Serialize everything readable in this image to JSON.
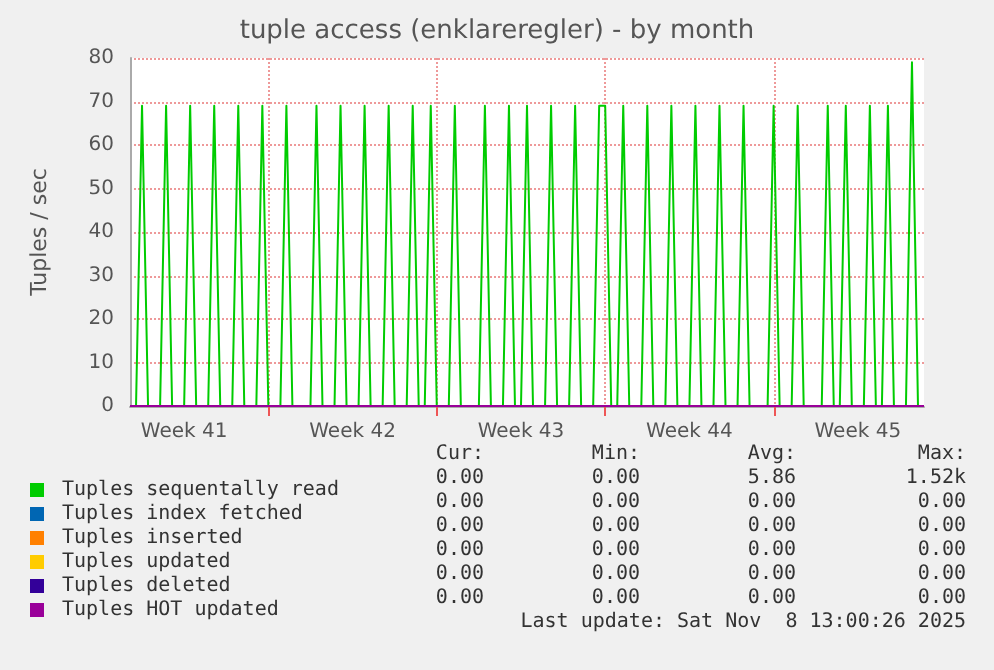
{
  "chart_data": {
    "type": "line",
    "title": "tuple access (enklareregler) - by month",
    "ylabel": "Tuples / sec",
    "categories": [
      null,
      null,
      null,
      null,
      null,
      null,
      null,
      null,
      null,
      "Week 41",
      null,
      null,
      null,
      null,
      null,
      null,
      null,
      null,
      null,
      null,
      null,
      null,
      null,
      null,
      null,
      null,
      null,
      null,
      null,
      null,
      null,
      null,
      null,
      null,
      null,
      null,
      null,
      "Week 42",
      null,
      null,
      null,
      null,
      null,
      null,
      null,
      null,
      null,
      null,
      null,
      null,
      null,
      null,
      null,
      null,
      null,
      null,
      null,
      null,
      null,
      null,
      null,
      null,
      null,
      null,
      null,
      "Week 43",
      null,
      null,
      null,
      null,
      null,
      null,
      null,
      null,
      null,
      null,
      null,
      null,
      null,
      null,
      null,
      null,
      null,
      null,
      null,
      null,
      null,
      null,
      null,
      null,
      null,
      null,
      null,
      "Week 44",
      null,
      null,
      null,
      null,
      null,
      null,
      null,
      null,
      null,
      null,
      null,
      null,
      null,
      null,
      null,
      null,
      null,
      null,
      null,
      null,
      null,
      null,
      null,
      null,
      null,
      null,
      null,
      "Week 45",
      null,
      null,
      null,
      null,
      null,
      null,
      null,
      null,
      null,
      null,
      null
    ],
    "ylim": [
      0,
      80
    ],
    "yticks": [
      0,
      10,
      20,
      30,
      40,
      50,
      60,
      70,
      80
    ],
    "grid": true,
    "legend": "bottom",
    "marker": "none",
    "line_style": "solid",
    "series": [
      {
        "name": "Tuples sequentally read",
        "color": "#00cc00",
        "values": [
          0,
          0,
          69,
          0,
          0,
          0,
          69,
          0,
          0,
          0,
          69,
          0,
          0,
          0,
          69,
          0,
          0,
          0,
          69,
          0,
          0,
          0,
          69,
          0,
          0,
          0,
          69,
          0,
          0,
          0,
          0,
          69,
          0,
          0,
          0,
          69,
          0,
          0,
          0,
          69,
          0,
          0,
          0,
          69,
          0,
          0,
          0,
          69,
          0,
          0,
          69,
          0,
          0,
          0,
          69,
          0,
          0,
          0,
          0,
          69,
          0,
          0,
          0,
          69,
          0,
          0,
          69,
          0,
          0,
          0,
          69,
          0,
          0,
          0,
          69,
          0,
          0,
          0,
          69,
          69,
          0,
          0,
          69,
          0,
          0,
          0,
          69,
          0,
          0,
          0,
          69,
          0,
          0,
          0,
          69,
          0,
          0,
          0,
          69,
          0,
          0,
          0,
          69,
          0,
          0,
          0,
          0,
          69,
          0,
          0,
          0,
          69,
          0,
          0,
          0,
          0,
          69,
          0,
          0,
          69,
          0,
          0,
          0,
          69,
          0,
          0,
          69,
          0,
          0,
          0,
          79,
          0,
          0
        ]
      },
      {
        "name": "Tuples index fetched",
        "color": "#0066b3",
        "values": [
          null,
          null,
          null,
          null,
          null,
          null,
          null,
          null,
          null,
          null,
          null,
          null,
          null,
          null,
          null,
          null,
          null,
          null,
          null,
          null,
          null,
          null,
          null,
          null,
          null,
          null,
          null,
          null,
          null,
          null,
          null,
          null,
          null,
          null,
          null,
          null,
          null,
          null,
          null,
          null,
          null,
          null,
          null,
          null,
          null,
          null,
          null,
          null,
          null,
          null,
          null,
          null,
          null,
          null,
          null,
          null,
          null,
          null,
          null,
          null,
          null,
          null,
          null,
          null,
          null,
          null,
          null,
          null,
          null,
          null,
          null,
          null,
          null,
          null,
          null,
          null,
          null,
          null,
          null,
          null,
          null,
          null,
          null,
          null,
          null,
          null,
          null,
          null,
          null,
          null,
          null,
          null,
          null,
          null,
          null,
          null,
          null,
          null,
          null,
          null,
          null,
          null,
          null,
          null,
          null,
          null,
          null,
          null,
          null,
          null,
          null,
          null,
          null,
          null,
          null,
          null,
          null,
          null,
          null,
          null,
          null,
          null,
          null,
          null,
          null,
          null,
          null,
          null,
          null,
          null,
          null,
          null,
          null
        ]
      },
      {
        "name": "Tuples inserted",
        "color": "#ff8000",
        "values": [
          null,
          null,
          null,
          null,
          null,
          null,
          null,
          null,
          null,
          null,
          null,
          null,
          null,
          null,
          null,
          null,
          null,
          null,
          null,
          null,
          null,
          null,
          null,
          null,
          null,
          null,
          null,
          null,
          null,
          null,
          null,
          null,
          null,
          null,
          null,
          null,
          null,
          null,
          null,
          null,
          null,
          null,
          null,
          null,
          null,
          null,
          null,
          null,
          null,
          null,
          null,
          null,
          null,
          null,
          null,
          null,
          null,
          null,
          null,
          null,
          null,
          null,
          null,
          null,
          null,
          null,
          null,
          null,
          null,
          null,
          null,
          null,
          null,
          null,
          null,
          null,
          null,
          null,
          null,
          null,
          null,
          null,
          null,
          null,
          null,
          null,
          null,
          null,
          null,
          null,
          null,
          null,
          null,
          null,
          null,
          null,
          null,
          null,
          null,
          null,
          null,
          null,
          null,
          null,
          null,
          null,
          null,
          null,
          null,
          null,
          null,
          null,
          null,
          null,
          null,
          null,
          null,
          null,
          null,
          null,
          null,
          null,
          null,
          null,
          null,
          null,
          null,
          null,
          null,
          null,
          null,
          null,
          null
        ]
      },
      {
        "name": "Tuples updated",
        "color": "#ffcc00",
        "values": [
          null,
          null,
          null,
          null,
          null,
          null,
          null,
          null,
          null,
          null,
          null,
          null,
          null,
          null,
          null,
          null,
          null,
          null,
          null,
          null,
          null,
          null,
          null,
          null,
          null,
          null,
          null,
          null,
          null,
          null,
          null,
          null,
          null,
          null,
          null,
          null,
          null,
          null,
          null,
          null,
          null,
          null,
          null,
          null,
          null,
          null,
          null,
          null,
          null,
          null,
          null,
          null,
          null,
          null,
          null,
          null,
          null,
          null,
          null,
          null,
          null,
          null,
          null,
          null,
          null,
          null,
          null,
          null,
          null,
          null,
          null,
          null,
          null,
          null,
          null,
          null,
          null,
          null,
          null,
          null,
          null,
          null,
          null,
          null,
          null,
          null,
          null,
          null,
          null,
          null,
          null,
          null,
          null,
          null,
          null,
          null,
          null,
          null,
          null,
          null,
          null,
          null,
          null,
          null,
          null,
          null,
          null,
          null,
          null,
          null,
          null,
          null,
          null,
          null,
          null,
          null,
          null,
          null,
          null,
          null,
          null,
          null,
          null,
          null,
          null,
          null,
          null,
          null,
          null,
          null,
          null,
          null,
          null
        ]
      },
      {
        "name": "Tuples deleted",
        "color": "#330099",
        "values": [
          null,
          null,
          null,
          null,
          null,
          null,
          null,
          null,
          null,
          null,
          null,
          null,
          null,
          null,
          null,
          null,
          null,
          null,
          null,
          null,
          null,
          null,
          null,
          null,
          null,
          null,
          null,
          null,
          null,
          null,
          null,
          null,
          null,
          null,
          null,
          null,
          null,
          null,
          null,
          null,
          null,
          null,
          null,
          null,
          null,
          null,
          null,
          null,
          null,
          null,
          null,
          null,
          null,
          null,
          null,
          null,
          null,
          null,
          null,
          null,
          null,
          null,
          null,
          null,
          null,
          null,
          null,
          null,
          null,
          null,
          null,
          null,
          null,
          null,
          null,
          null,
          null,
          null,
          null,
          null,
          null,
          null,
          null,
          null,
          null,
          null,
          null,
          null,
          null,
          null,
          null,
          null,
          null,
          null,
          null,
          null,
          null,
          null,
          null,
          null,
          null,
          null,
          null,
          null,
          null,
          null,
          null,
          null,
          null,
          null,
          null,
          null,
          null,
          null,
          null,
          null,
          null,
          null,
          null,
          null,
          null,
          null,
          null,
          null,
          null,
          null,
          null,
          null,
          null,
          null,
          null,
          null,
          null
        ]
      },
      {
        "name": "Tuples HOT updated",
        "color": "#990099",
        "values": [
          0,
          0,
          0,
          0,
          0,
          0,
          0,
          0,
          0,
          0,
          0,
          0,
          0,
          0,
          0,
          0,
          0,
          0,
          0,
          0,
          0,
          0,
          0,
          0,
          0,
          0,
          0,
          0,
          0,
          0,
          0,
          0,
          0,
          0,
          0,
          0,
          0,
          0,
          0,
          0,
          0,
          0,
          0,
          0,
          0,
          0,
          0,
          0,
          0,
          0,
          0,
          0,
          0,
          0,
          0,
          0,
          0,
          0,
          0,
          0,
          0,
          0,
          0,
          0,
          0,
          0,
          0,
          0,
          0,
          0,
          0,
          0,
          0,
          0,
          0,
          0,
          0,
          0,
          0,
          0,
          0,
          0,
          0,
          0,
          0,
          0,
          0,
          0,
          0,
          0,
          0,
          0,
          0,
          0,
          0,
          0,
          0,
          0,
          0,
          0,
          0,
          0,
          0,
          0,
          0,
          0,
          0,
          0,
          0,
          0,
          0,
          0,
          0,
          0,
          0,
          0,
          0,
          0,
          0,
          0,
          0,
          0,
          0,
          0,
          0,
          0,
          0,
          0,
          0,
          0,
          0,
          0,
          0
        ]
      }
    ],
    "annotations": [
      "Cur:",
      "Min:",
      "Avg:",
      "Max:",
      "0.00",
      "0.00",
      "5.86",
      "1.52k",
      "0.00",
      "0.00",
      "0.00",
      "0.00",
      "0.00",
      "0.00",
      "0.00",
      "0.00",
      "0.00",
      "0.00",
      "0.00",
      "0.00",
      "0.00",
      "0.00",
      "0.00",
      "0.00",
      "0.00",
      "0.00",
      "0.00",
      "0.00",
      "Last update: Sat Nov  8 13:00:26 2025"
    ]
  }
}
